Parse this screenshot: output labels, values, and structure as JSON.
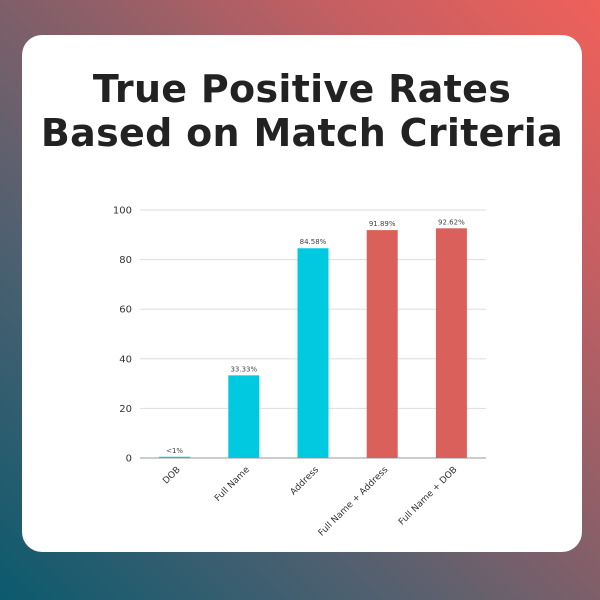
{
  "title": {
    "line1": "True Positive Rates",
    "line2": "Based on Match Criteria"
  },
  "colors": {
    "single_criteria": "#00c9e0",
    "combined_criteria": "#d9605b",
    "gridline": "#dddddd",
    "axis": "#999999"
  },
  "chart_data": {
    "type": "bar",
    "categories": [
      "DOB",
      "Full Name",
      "Address",
      "Full Name + Address",
      "Full Name + DOB"
    ],
    "values": [
      0.5,
      33.33,
      84.58,
      91.89,
      92.62
    ],
    "data_labels": [
      "<1%",
      "33.33%",
      "84.58%",
      "91.89%",
      "92.62%"
    ],
    "bar_colors": [
      "#00c9e0",
      "#00c9e0",
      "#00c9e0",
      "#d9605b",
      "#d9605b"
    ],
    "ylim": [
      0,
      100
    ],
    "yticks": [
      0,
      20,
      40,
      60,
      80,
      100
    ],
    "grid": true,
    "legend": "none",
    "xlabel": "",
    "ylabel": ""
  }
}
